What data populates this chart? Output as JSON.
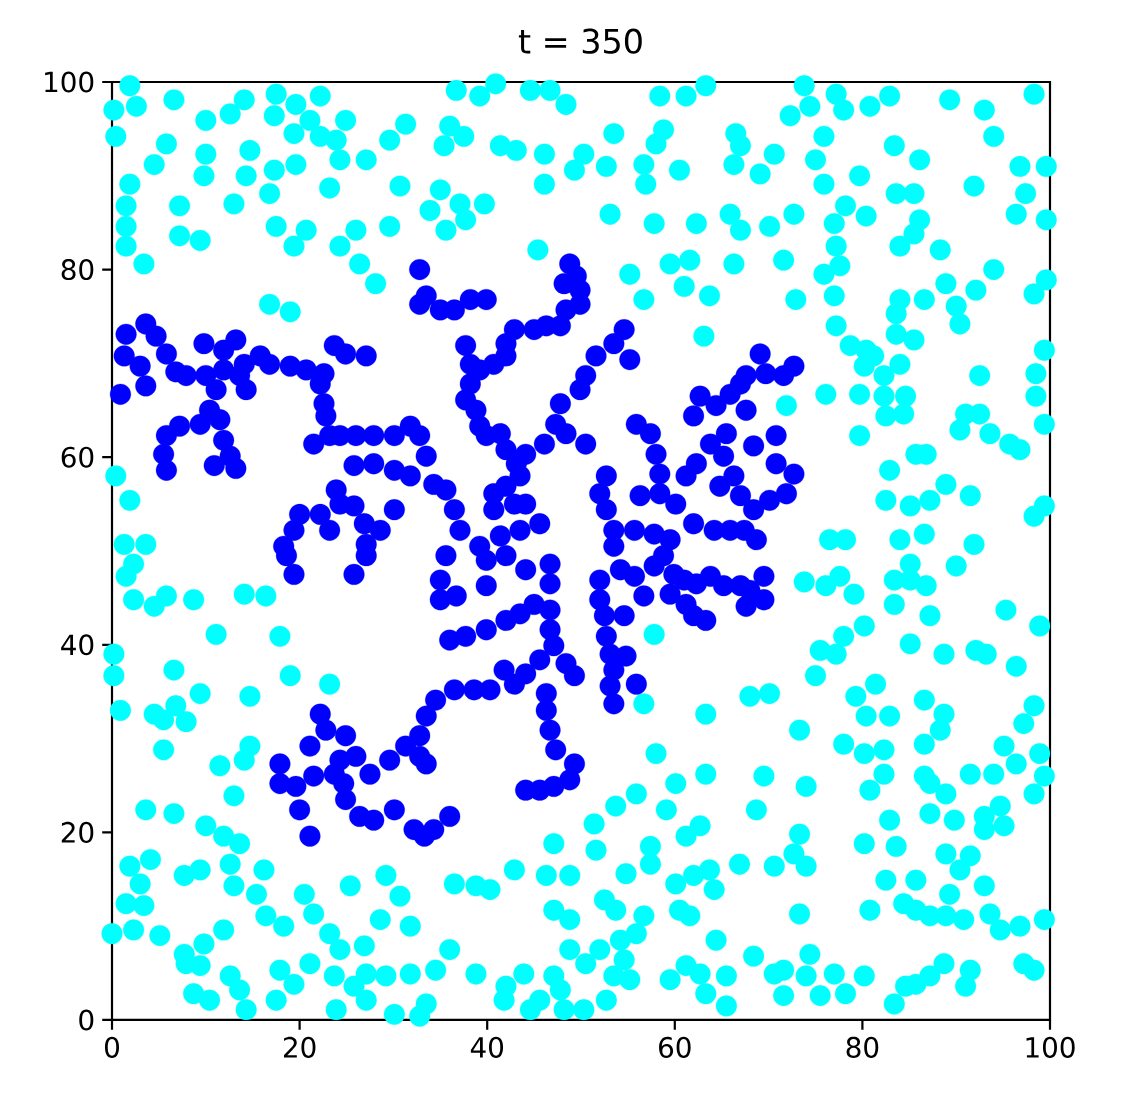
{
  "chart_data": {
    "type": "scatter",
    "title": "t = 350",
    "xlim": [
      0,
      100
    ],
    "ylim": [
      0,
      100
    ],
    "xticks": [
      0,
      20,
      40,
      60,
      80,
      100
    ],
    "yticks": [
      0,
      20,
      40,
      60,
      80,
      100
    ],
    "marker": "circle",
    "series": [
      {
        "color": "#00ffff",
        "x": [
          1.9,
          0.2,
          2.6,
          6.6,
          10.0,
          12.6,
          14.1,
          17.5,
          19.6,
          22.2,
          17.3,
          21.1,
          24.9,
          0.4,
          5.8,
          10.0,
          14.7,
          19.4,
          22.2,
          23.9,
          31.3,
          29.6,
          4.5,
          9.8,
          14.3,
          17.3,
          19.6,
          24.3,
          27.1,
          1.9,
          23.2,
          30.7,
          16.8,
          1.5,
          7.2,
          13.0,
          1.5,
          7.2,
          9.4,
          17.5,
          20.7,
          19.4,
          24.3,
          26.0,
          29.6,
          1.5,
          3.4,
          26.4,
          28.1,
          33.9,
          16.8,
          19.0,
          0.4,
          1.9,
          1.3,
          3.6,
          36.7,
          39.2,
          40.9,
          44.6,
          46.7,
          48.4,
          58.4,
          61.2,
          63.3,
          36.0,
          35.4,
          37.5,
          41.4,
          43.1,
          46.1,
          50.3,
          49.3,
          52.7,
          53.5,
          56.7,
          58.0,
          58.8,
          60.5,
          66.5,
          67.0,
          66.3,
          46.1,
          56.9,
          35.0,
          37.1,
          39.7,
          37.7,
          35.6,
          53.1,
          57.8,
          62.3,
          65.9,
          67.0,
          45.4,
          55.2,
          56.7,
          59.5,
          61.6,
          61.0,
          63.7,
          66.3,
          63.1,
          73.8,
          77.2,
          78.0,
          80.8,
          82.9,
          89.3,
          93.0,
          98.3,
          72.3,
          74.4,
          70.6,
          75.9,
          75.0,
          69.1,
          75.9,
          79.7,
          83.4,
          86.1,
          94.0,
          96.8,
          99.6,
          91.9,
          83.6,
          85.5,
          97.4,
          72.7,
          78.2,
          80.4,
          96.4,
          99.6,
          70.1,
          77.0,
          86.1,
          85.5,
          84.0,
          71.6,
          77.2,
          77.6,
          75.9,
          88.3,
          94.0,
          88.9,
          92.1,
          99.6,
          72.9,
          77.0,
          84.0,
          86.6,
          90.0,
          98.3,
          83.6,
          77.2,
          90.4,
          83.6,
          85.5,
          78.7,
          80.4,
          81.2,
          80.2,
          84.0,
          82.3,
          99.4,
          98.5,
          92.5,
          71.9,
          76.1,
          79.7,
          82.3,
          84.6,
          82.5,
          84.4,
          79.7,
          90.4,
          91.0,
          92.5,
          93.6,
          95.7,
          96.8,
          99.4,
          98.5,
          85.7,
          86.8,
          82.9,
          88.9,
          91.5,
          82.5,
          85.1,
          87.2,
          86.6,
          84.0,
          76.5,
          78.2,
          91.9,
          98.3,
          99.4,
          1.5,
          2.3,
          2.3,
          4.5,
          5.8,
          8.7,
          14.1,
          16.4,
          11.1,
          17.9,
          0.2,
          0.2,
          6.6,
          9.4,
          14.7,
          19.0,
          23.2,
          0.9,
          4.5,
          5.5,
          6.8,
          7.9,
          5.5,
          14.7,
          14.1,
          11.5,
          13.0,
          3.6,
          6.6,
          10.0,
          11.9,
          13.6,
          1.9,
          4.1,
          7.7,
          9.4,
          12.6,
          16.2,
          3.0,
          1.5,
          3.4,
          13.0,
          15.4,
          20.5,
          25.4,
          29.2,
          30.7,
          0.0,
          2.3,
          5.1,
          11.9,
          16.4,
          18.3,
          21.5,
          23.2,
          24.3,
          26.9,
          28.6,
          31.8,
          7.7,
          9.8,
          7.9,
          9.4,
          12.6,
          13.6,
          17.9,
          19.4,
          21.1,
          23.7,
          25.8,
          27.1,
          29.2,
          31.8,
          8.7,
          10.4,
          14.3,
          17.5,
          23.9,
          27.1,
          30.1,
          32.8,
          57.8,
          56.7,
          63.3,
          58.0,
          63.3,
          55.9,
          53.7,
          60.1,
          59.1,
          51.4,
          47.1,
          51.6,
          57.4,
          57.4,
          61.2,
          62.7,
          36.5,
          38.8,
          40.3,
          42.9,
          46.3,
          48.8,
          54.8,
          60.1,
          62.0,
          63.7,
          64.2,
          66.9,
          47.1,
          48.8,
          52.5,
          53.7,
          56.7,
          60.5,
          61.6,
          55.9,
          54.2,
          52.0,
          48.8,
          50.5,
          54.6,
          53.5,
          55.2,
          59.5,
          61.2,
          62.7,
          63.3,
          65.5,
          64.4,
          36.0,
          34.5,
          38.8,
          42.0,
          43.9,
          47.1,
          47.8,
          41.8,
          44.6,
          45.6,
          48.2,
          50.3,
          52.7,
          33.5,
          65.5,
          73.8,
          76.1,
          77.6,
          79.1,
          83.4,
          85.1,
          86.8,
          85.1,
          90.0,
          83.4,
          87.2,
          80.2,
          78.0,
          75.5,
          77.2,
          85.1,
          88.7,
          92.1,
          93.2,
          95.3,
          98.9,
          96.4,
          75.0,
          68.0,
          70.1,
          79.3,
          81.4,
          80.4,
          82.9,
          86.6,
          88.7,
          88.3,
          73.3,
          78.0,
          80.2,
          82.3,
          86.6,
          95.1,
          98.3,
          97.2,
          98.9,
          96.4,
          69.5,
          74.0,
          82.3,
          80.8,
          86.6,
          87.2,
          91.5,
          94.0,
          99.4,
          98.3,
          68.7,
          82.9,
          87.2,
          88.9,
          89.8,
          93.0,
          94.7,
          95.1,
          93.0,
          73.3,
          80.2,
          83.6,
          72.7,
          74.0,
          70.6,
          88.9,
          91.5,
          90.4,
          82.5,
          85.7,
          89.3,
          93.0,
          84.4,
          85.7,
          87.2,
          88.9,
          90.8,
          93.6,
          94.7,
          96.8,
          99.4,
          73.3,
          80.8,
          68.4,
          70.6,
          71.6,
          74.4,
          74.0,
          77.0,
          80.2,
          71.6,
          75.5,
          78.2,
          84.6,
          85.7,
          87.2,
          88.7,
          91.5,
          91.0,
          97.2,
          98.3,
          83.4
        ],
        "values": [
          99.6,
          97.0,
          97.4,
          98.1,
          95.9,
          96.6,
          98.1,
          98.7,
          97.6,
          98.5,
          96.4,
          95.9,
          95.9,
          94.2,
          93.4,
          92.3,
          92.7,
          94.5,
          94.2,
          93.8,
          95.5,
          93.8,
          91.2,
          90.0,
          90.0,
          90.6,
          91.2,
          91.7,
          91.7,
          89.1,
          88.7,
          88.9,
          88.1,
          86.8,
          86.8,
          87.0,
          84.6,
          83.6,
          83.1,
          84.6,
          84.2,
          82.5,
          82.5,
          84.2,
          84.6,
          82.5,
          80.6,
          80.6,
          78.5,
          86.3,
          76.3,
          75.5,
          58.0,
          55.4,
          50.7,
          50.7,
          99.1,
          98.5,
          99.8,
          99.1,
          99.1,
          97.6,
          98.5,
          98.5,
          99.6,
          95.3,
          93.2,
          94.2,
          93.2,
          92.7,
          92.3,
          92.3,
          90.6,
          91.0,
          94.5,
          91.2,
          93.4,
          94.9,
          90.6,
          94.5,
          93.2,
          91.2,
          89.1,
          89.1,
          88.5,
          87.0,
          87.0,
          85.3,
          84.2,
          85.9,
          84.9,
          84.9,
          85.9,
          84.2,
          82.1,
          79.5,
          76.8,
          80.6,
          81.0,
          78.2,
          77.2,
          80.6,
          72.9,
          99.6,
          98.7,
          97.0,
          97.4,
          98.5,
          98.1,
          97.0,
          98.7,
          96.4,
          97.4,
          92.3,
          94.2,
          91.7,
          90.2,
          89.1,
          90.0,
          93.2,
          91.7,
          94.2,
          91.0,
          91.0,
          88.9,
          88.1,
          88.1,
          88.1,
          85.9,
          86.8,
          85.7,
          85.9,
          85.3,
          84.6,
          84.9,
          85.3,
          83.8,
          82.5,
          81.0,
          82.5,
          80.4,
          79.5,
          82.1,
          80.0,
          78.5,
          77.8,
          78.9,
          76.8,
          77.2,
          76.8,
          76.8,
          76.1,
          77.4,
          75.3,
          74.0,
          74.2,
          73.1,
          72.5,
          71.9,
          71.4,
          70.8,
          69.7,
          69.9,
          68.7,
          71.4,
          68.9,
          68.7,
          65.5,
          66.7,
          66.7,
          66.5,
          66.5,
          64.4,
          64.6,
          62.3,
          62.9,
          64.6,
          64.6,
          62.5,
          61.4,
          60.8,
          63.5,
          66.5,
          60.3,
          60.3,
          58.6,
          57.1,
          55.9,
          55.4,
          54.8,
          55.4,
          51.8,
          51.2,
          51.2,
          51.2,
          50.7,
          53.7,
          54.8,
          47.3,
          48.6,
          44.8,
          44.1,
          45.2,
          44.8,
          45.4,
          45.2,
          41.1,
          40.9,
          39.0,
          36.7,
          37.3,
          34.8,
          34.5,
          36.7,
          35.8,
          33.0,
          32.6,
          32.0,
          33.5,
          31.8,
          28.8,
          29.2,
          27.7,
          27.1,
          23.9,
          22.4,
          22.0,
          20.7,
          19.6,
          18.8,
          16.4,
          17.1,
          15.4,
          16.0,
          16.6,
          16.0,
          14.5,
          12.4,
          12.2,
          14.3,
          13.4,
          13.4,
          14.3,
          15.4,
          13.2,
          9.2,
          9.6,
          9.0,
          9.6,
          11.1,
          10.0,
          11.3,
          9.2,
          7.5,
          7.9,
          10.7,
          10.0,
          7.0,
          8.1,
          6.0,
          5.8,
          4.7,
          3.2,
          5.3,
          3.8,
          6.0,
          4.7,
          3.6,
          4.9,
          4.7,
          4.9,
          2.8,
          2.1,
          1.1,
          2.1,
          1.1,
          2.1,
          0.6,
          0.4,
          41.1,
          33.7,
          32.6,
          28.4,
          26.2,
          24.1,
          22.8,
          25.2,
          22.4,
          20.9,
          18.8,
          18.1,
          18.5,
          16.6,
          19.6,
          20.7,
          14.5,
          14.3,
          13.9,
          16.0,
          15.4,
          15.4,
          15.6,
          14.5,
          15.4,
          16.0,
          13.9,
          16.6,
          11.7,
          10.7,
          12.8,
          11.7,
          11.1,
          11.7,
          11.1,
          9.2,
          8.5,
          7.5,
          7.5,
          6.0,
          6.4,
          4.7,
          4.3,
          4.3,
          5.8,
          4.9,
          2.8,
          4.7,
          8.5,
          7.5,
          5.3,
          4.9,
          3.6,
          4.9,
          4.7,
          3.2,
          2.1,
          1.1,
          2.1,
          1.1,
          1.1,
          2.1,
          1.7,
          1.5,
          46.7,
          46.3,
          47.3,
          45.4,
          46.9,
          46.9,
          46.3,
          48.6,
          48.4,
          44.3,
          43.1,
          42.0,
          40.9,
          39.4,
          39.0,
          40.1,
          39.0,
          39.4,
          39.0,
          43.7,
          42.0,
          37.7,
          36.7,
          34.5,
          34.8,
          34.5,
          35.8,
          32.4,
          32.4,
          34.1,
          32.6,
          30.9,
          30.9,
          29.4,
          28.4,
          28.8,
          29.4,
          29.2,
          33.5,
          31.6,
          28.4,
          27.3,
          26.0,
          24.9,
          26.2,
          24.5,
          26.0,
          25.2,
          26.2,
          26.2,
          26.0,
          24.1,
          22.4,
          21.3,
          22.0,
          24.1,
          21.3,
          21.7,
          22.8,
          20.7,
          20.3,
          19.8,
          18.8,
          18.5,
          17.7,
          16.4,
          16.4,
          17.7,
          17.5,
          16.0,
          14.9,
          14.9,
          13.4,
          14.3,
          12.4,
          11.7,
          11.1,
          11.1,
          10.7,
          11.3,
          9.6,
          10.0,
          10.7,
          11.3,
          11.7,
          6.8,
          4.9,
          5.3,
          7.0,
          4.7,
          4.9,
          4.7,
          2.6,
          2.6,
          2.8,
          3.6,
          3.8,
          4.7,
          6.0,
          5.3,
          3.6,
          6.0,
          5.3,
          1.7
        ]
      },
      {
        "color": "#0000ff",
        "x": [
          1.5,
          3.6,
          4.7,
          5.8,
          1.3,
          3.0,
          6.8,
          7.9,
          10.0,
          11.9,
          13.6,
          15.8,
          16.8,
          19.0,
          20.7,
          22.6,
          23.7,
          24.9,
          27.1,
          0.9,
          3.6,
          11.1,
          10.4,
          9.4,
          7.2,
          5.8,
          5.5,
          5.8,
          11.5,
          11.9,
          12.6,
          13.2,
          10.9,
          9.8,
          11.9,
          13.2,
          14.1,
          14.3,
          22.2,
          22.6,
          22.8,
          23.2,
          21.5,
          24.3,
          26.0,
          27.9,
          30.1,
          31.8,
          25.8,
          27.9,
          30.1,
          31.8,
          23.9,
          24.3,
          22.2,
          20.0,
          19.4,
          18.3,
          23.2,
          25.8,
          26.9,
          27.1,
          30.1,
          28.6,
          32.8,
          32.8,
          48.8,
          49.5,
          48.2,
          49.9,
          49.9,
          48.4,
          47.8,
          46.3,
          45.0,
          42.9,
          42.0,
          42.0,
          40.7,
          39.2,
          37.7,
          38.2,
          38.2,
          37.7,
          38.8,
          39.2,
          39.9,
          41.4,
          42.0,
          43.1,
          43.5,
          42.0,
          40.7,
          40.7,
          42.9,
          44.1,
          45.6,
          43.5,
          41.4,
          39.2,
          37.1,
          36.5,
          35.6,
          34.3,
          33.5,
          32.8,
          33.5,
          35.0,
          36.5,
          38.2,
          39.9,
          54.6,
          53.5,
          55.2,
          51.6,
          50.5,
          49.9,
          47.8,
          47.3,
          48.4,
          50.5,
          46.1,
          44.1,
          55.9,
          57.4,
          58.0,
          58.4,
          58.4,
          56.3,
          52.7,
          52.0,
          52.7,
          53.5,
          53.5,
          55.7,
          57.8,
          59.5,
          60.1,
          62.0,
          64.2,
          65.9,
          61.2,
          62.3,
          63.8,
          65.5,
          62.7,
          62.0,
          64.4,
          65.9,
          67.0,
          67.6,
          65.2,
          66.3,
          64.8,
          67.0,
          69.1,
          67.6,
          69.7,
          71.6,
          72.7,
          68.4,
          70.8,
          70.8,
          72.7,
          71.9,
          70.1,
          68.4,
          68.7,
          67.4,
          18.6,
          19.4,
          25.8,
          27.1,
          22.2,
          22.8,
          21.1,
          24.9,
          17.9,
          17.9,
          19.6,
          20.0,
          21.1,
          21.5,
          23.7,
          24.3,
          24.7,
          24.9,
          26.4,
          27.9,
          30.1,
          32.2,
          33.3,
          27.5,
          26.0,
          29.6,
          31.3,
          32.8,
          33.5,
          32.8,
          35.6,
          35.0,
          35.0,
          36.7,
          39.9,
          39.9,
          42.0,
          44.1,
          46.7,
          46.7,
          45.0,
          43.5,
          42.0,
          39.9,
          37.7,
          36.0,
          46.7,
          46.7,
          47.1,
          45.6,
          44.1,
          41.8,
          42.9,
          40.3,
          38.6,
          36.5,
          34.5,
          33.5,
          48.4,
          49.3,
          46.3,
          46.3,
          46.7,
          47.3,
          49.3,
          48.8,
          47.1,
          45.6,
          44.1,
          36.0,
          34.3,
          52.0,
          52.0,
          52.5,
          52.7,
          53.1,
          53.5,
          53.1,
          53.5,
          54.8,
          55.9,
          54.2,
          55.7,
          56.7,
          54.6,
          57.8,
          58.8,
          59.9,
          61.0,
          62.3,
          63.8,
          65.2,
          67.0,
          59.5,
          61.2,
          62.0,
          63.3,
          67.6,
          69.5,
          68.0,
          69.5
        ],
        "values": [
          73.1,
          74.2,
          72.9,
          71.0,
          70.8,
          69.7,
          69.1,
          68.7,
          68.7,
          69.3,
          68.7,
          70.8,
          69.9,
          69.7,
          69.3,
          68.9,
          71.9,
          71.0,
          70.8,
          66.7,
          67.6,
          67.2,
          65.0,
          63.5,
          63.3,
          62.3,
          60.3,
          58.6,
          64.0,
          61.8,
          60.1,
          58.8,
          59.1,
          72.1,
          71.4,
          72.5,
          69.9,
          67.2,
          67.8,
          65.7,
          64.4,
          62.3,
          61.4,
          62.3,
          62.3,
          62.3,
          62.3,
          63.3,
          59.1,
          59.3,
          58.6,
          58.0,
          56.5,
          55.0,
          53.9,
          53.9,
          52.2,
          50.5,
          52.2,
          54.8,
          52.9,
          50.7,
          54.4,
          52.2,
          80.0,
          76.3,
          80.6,
          79.3,
          78.5,
          77.8,
          76.3,
          75.7,
          74.0,
          74.0,
          73.6,
          73.6,
          72.1,
          70.8,
          69.9,
          69.3,
          71.9,
          69.9,
          67.8,
          66.1,
          65.0,
          63.3,
          62.3,
          62.5,
          60.8,
          59.3,
          58.0,
          56.9,
          56.1,
          54.4,
          55.0,
          55.0,
          52.9,
          52.2,
          51.6,
          50.5,
          52.2,
          54.4,
          56.5,
          57.1,
          60.1,
          62.3,
          77.2,
          75.7,
          75.7,
          76.8,
          76.8,
          73.6,
          72.1,
          70.4,
          70.8,
          68.7,
          67.2,
          65.7,
          63.5,
          62.5,
          61.4,
          61.4,
          60.3,
          63.5,
          62.5,
          60.3,
          58.2,
          56.1,
          55.9,
          58.0,
          56.1,
          54.4,
          52.2,
          50.5,
          52.2,
          51.8,
          51.2,
          55.0,
          52.9,
          52.2,
          52.2,
          58.0,
          59.3,
          61.4,
          62.5,
          66.5,
          64.4,
          65.5,
          66.7,
          67.8,
          65.0,
          60.1,
          58.0,
          56.9,
          55.9,
          71.0,
          68.7,
          68.9,
          68.7,
          69.7,
          61.2,
          62.3,
          59.3,
          58.2,
          56.1,
          55.4,
          54.4,
          51.2,
          52.2,
          49.5,
          47.5,
          47.5,
          49.5,
          32.6,
          30.9,
          29.2,
          30.3,
          27.3,
          25.2,
          24.9,
          22.4,
          19.6,
          26.0,
          26.2,
          27.7,
          25.2,
          23.5,
          21.7,
          21.3,
          22.4,
          20.3,
          19.6,
          26.2,
          28.1,
          27.7,
          29.2,
          30.3,
          32.4,
          28.1,
          49.5,
          46.9,
          44.8,
          45.2,
          49.0,
          46.3,
          49.5,
          48.0,
          48.6,
          46.5,
          44.3,
          43.3,
          42.6,
          41.6,
          40.9,
          40.5,
          43.7,
          41.6,
          39.9,
          38.4,
          36.9,
          37.3,
          35.8,
          35.2,
          35.2,
          35.2,
          34.1,
          27.3,
          38.0,
          36.7,
          34.8,
          33.0,
          30.9,
          28.8,
          27.3,
          25.6,
          24.9,
          24.5,
          24.5,
          21.7,
          20.3,
          46.9,
          44.8,
          43.1,
          40.9,
          39.0,
          37.3,
          35.6,
          33.7,
          38.8,
          35.8,
          48.0,
          47.3,
          45.2,
          43.1,
          48.4,
          49.5,
          47.5,
          46.9,
          46.5,
          47.3,
          46.3,
          46.3,
          45.4,
          44.3,
          43.1,
          42.6,
          44.1,
          47.3,
          45.8,
          44.8
        ]
      }
    ]
  }
}
